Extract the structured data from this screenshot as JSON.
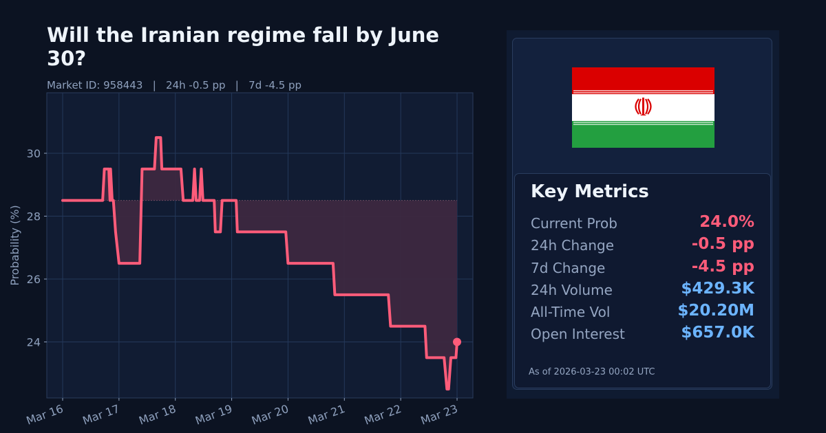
{
  "header": {
    "title": "Will the Iranian regime fall by June 30?",
    "subtitle": "Market ID: 958443   |   24h -0.5 pp   |   7d -4.5 pp",
    "market_id": "958443",
    "change_24h": "24h -0.5 pp",
    "change_7d": "7d -4.5 pp"
  },
  "colors": {
    "line": "#ff5c7a",
    "fill": "#3d2840",
    "negative": "#ff5c7a",
    "positive_money": "#6cb4ff",
    "plot_bg": "#111c33",
    "grid": "#24385a"
  },
  "flag": {
    "country": "Iran",
    "icon": "iran-flag-icon"
  },
  "metrics": {
    "title": "Key Metrics",
    "rows": [
      {
        "label": "Current Prob",
        "value": "24.0%",
        "tone": "negative"
      },
      {
        "label": "24h Change",
        "value": "-0.5 pp",
        "tone": "negative"
      },
      {
        "label": "7d Change",
        "value": "-4.5 pp",
        "tone": "negative"
      },
      {
        "label": "24h Volume",
        "value": "$429.3K",
        "tone": "money"
      },
      {
        "label": "All-Time Vol",
        "value": "$20.20M",
        "tone": "money"
      },
      {
        "label": "Open Interest",
        "value": "$657.0K",
        "tone": "money"
      }
    ],
    "as_of": "As of 2026-03-23 00:02 UTC"
  },
  "chart_data": {
    "type": "line",
    "title": "Will the Iranian regime fall by June 30?",
    "xlabel": "",
    "ylabel": "Probability (%)",
    "x_ticks": [
      "Mar 16",
      "Mar 17",
      "Mar 18",
      "Mar 19",
      "Mar 20",
      "Mar 21",
      "Mar 22",
      "Mar 23"
    ],
    "y_ticks": [
      24,
      26,
      28,
      30
    ],
    "ylim": [
      22.2,
      31.9
    ],
    "xlim_days": [
      -0.28,
      7.28
    ],
    "grid": true,
    "baseline": 28.5,
    "fill_between_baseline": true,
    "last_point_marker": true,
    "series": [
      {
        "name": "Probability",
        "points_days_value": [
          [
            0.0,
            28.5
          ],
          [
            0.71,
            28.5
          ],
          [
            0.74,
            29.5
          ],
          [
            0.82,
            29.5
          ],
          [
            0.84,
            28.5
          ],
          [
            0.85,
            29.5
          ],
          [
            0.88,
            28.5
          ],
          [
            0.9,
            28.5
          ],
          [
            0.94,
            27.5
          ],
          [
            1.0,
            26.5
          ],
          [
            1.37,
            26.5
          ],
          [
            1.41,
            29.5
          ],
          [
            1.63,
            29.5
          ],
          [
            1.66,
            30.5
          ],
          [
            1.74,
            30.5
          ],
          [
            1.76,
            29.5
          ],
          [
            2.1,
            29.5
          ],
          [
            2.14,
            28.5
          ],
          [
            2.31,
            28.5
          ],
          [
            2.34,
            29.5
          ],
          [
            2.37,
            28.5
          ],
          [
            2.43,
            28.5
          ],
          [
            2.46,
            29.5
          ],
          [
            2.49,
            28.5
          ],
          [
            2.69,
            28.5
          ],
          [
            2.71,
            27.5
          ],
          [
            2.8,
            27.5
          ],
          [
            2.83,
            28.5
          ],
          [
            3.08,
            28.5
          ],
          [
            3.1,
            27.5
          ],
          [
            3.96,
            27.5
          ],
          [
            4.0,
            26.5
          ],
          [
            4.8,
            26.5
          ],
          [
            4.83,
            25.5
          ],
          [
            5.78,
            25.5
          ],
          [
            5.82,
            24.5
          ],
          [
            6.43,
            24.5
          ],
          [
            6.46,
            23.5
          ],
          [
            6.77,
            23.5
          ],
          [
            6.82,
            22.5
          ],
          [
            6.85,
            22.5
          ],
          [
            6.89,
            23.5
          ],
          [
            6.98,
            23.5
          ],
          [
            7.0,
            24.0
          ]
        ]
      }
    ]
  }
}
